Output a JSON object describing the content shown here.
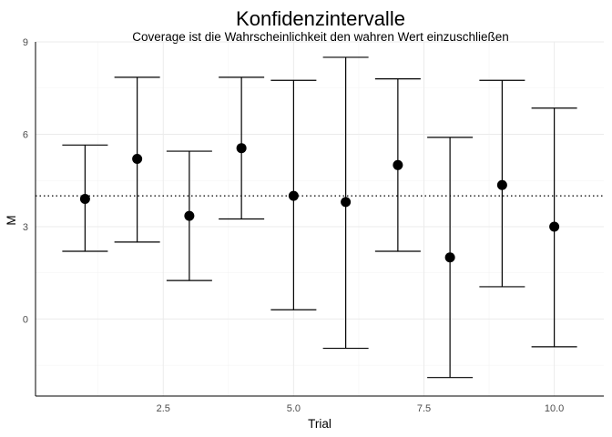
{
  "chart_data": {
    "type": "scatter",
    "title": "Konfidenzintervalle",
    "subtitle": "Coverage ist die Wahrscheinlichkeit den wahren Wert einzuschließen",
    "xlabel": "Trial",
    "ylabel": "M",
    "xlim": [
      0.05,
      10.95
    ],
    "ylim": [
      -2.5,
      9.0
    ],
    "x_ticks": [
      2.5,
      5.0,
      7.5,
      10.0
    ],
    "x_tick_labels": [
      "2.5",
      "5.0",
      "7.5",
      "10.0"
    ],
    "y_ticks": [
      0,
      3,
      6,
      9
    ],
    "y_tick_labels": [
      "0",
      "3",
      "6",
      "9"
    ],
    "grid": true,
    "reference_line": {
      "y": 4.0,
      "style": "dotted"
    },
    "x": [
      1,
      2,
      3,
      4,
      5,
      6,
      7,
      8,
      9,
      10
    ],
    "mean": [
      3.9,
      5.2,
      3.35,
      5.55,
      4.0,
      3.8,
      5.0,
      2.0,
      4.35,
      3.0
    ],
    "lower": [
      2.2,
      2.5,
      1.25,
      3.25,
      0.3,
      -0.95,
      2.2,
      -1.9,
      1.05,
      -0.9
    ],
    "upper": [
      5.65,
      7.85,
      5.45,
      7.85,
      7.75,
      8.5,
      7.8,
      5.9,
      7.75,
      6.85
    ]
  }
}
